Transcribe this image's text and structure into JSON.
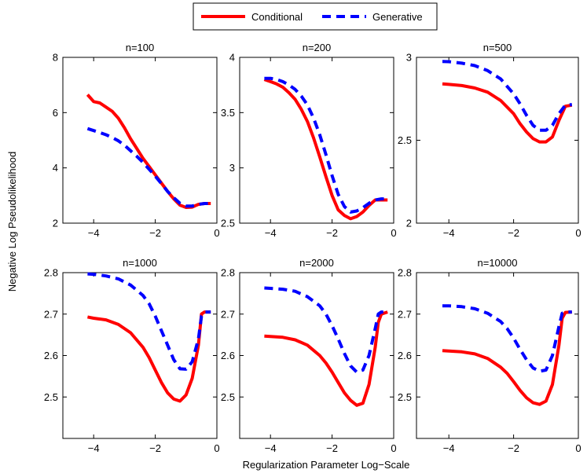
{
  "figure": {
    "xlabel": "Regularization Parameter Log−Scale",
    "ylabel": "Negative Log Pseudolikelihood"
  },
  "legend": {
    "entries": [
      {
        "name": "Conditional",
        "color": "#ff0000",
        "style": "solid"
      },
      {
        "name": "Generative",
        "color": "#0000ff",
        "style": "dashed"
      }
    ]
  },
  "chart_data": [
    {
      "type": "line",
      "title": "n=100",
      "xlim": [
        -5,
        0
      ],
      "ylim": [
        2,
        8
      ],
      "xticks": [
        -4,
        -2,
        0
      ],
      "xtick_labels": [
        "−4",
        "−2",
        "0"
      ],
      "yticks": [
        2,
        4,
        6,
        8
      ],
      "ytick_labels": [
        "2",
        "4",
        "6",
        "8"
      ],
      "series": [
        {
          "name": "Conditional",
          "color": "#ff0000",
          "style": "solid",
          "x": [
            -4.2,
            -4.0,
            -3.8,
            -3.6,
            -3.4,
            -3.2,
            -3.0,
            -2.8,
            -2.6,
            -2.4,
            -2.2,
            -2.0,
            -1.8,
            -1.6,
            -1.4,
            -1.2,
            -1.0,
            -0.8,
            -0.6,
            -0.4,
            -0.2
          ],
          "y": [
            6.65,
            6.4,
            6.35,
            6.2,
            6.05,
            5.8,
            5.45,
            5.05,
            4.7,
            4.35,
            4.05,
            3.75,
            3.45,
            3.15,
            2.88,
            2.65,
            2.57,
            2.58,
            2.68,
            2.71,
            2.71
          ]
        },
        {
          "name": "Generative",
          "color": "#0000ff",
          "style": "dashed",
          "x": [
            -4.2,
            -4.0,
            -3.8,
            -3.6,
            -3.4,
            -3.2,
            -3.0,
            -2.8,
            -2.6,
            -2.4,
            -2.2,
            -2.0,
            -1.8,
            -1.6,
            -1.4,
            -1.2,
            -1.0,
            -0.8,
            -0.6,
            -0.4,
            -0.2
          ],
          "y": [
            5.42,
            5.35,
            5.28,
            5.2,
            5.1,
            4.98,
            4.82,
            4.62,
            4.42,
            4.2,
            3.95,
            3.7,
            3.43,
            3.15,
            2.92,
            2.72,
            2.62,
            2.62,
            2.68,
            2.71,
            2.71
          ]
        }
      ]
    },
    {
      "type": "line",
      "title": "n=200",
      "xlim": [
        -5,
        0
      ],
      "ylim": [
        2.5,
        4
      ],
      "xticks": [
        -4,
        -2,
        0
      ],
      "xtick_labels": [
        "−4",
        "−2",
        "0"
      ],
      "yticks": [
        2.5,
        3,
        3.5,
        4
      ],
      "ytick_labels": [
        "2.5",
        "3",
        "3.5",
        "4"
      ],
      "series": [
        {
          "name": "Conditional",
          "color": "#ff0000",
          "style": "solid",
          "x": [
            -4.2,
            -4.0,
            -3.8,
            -3.6,
            -3.4,
            -3.2,
            -3.0,
            -2.8,
            -2.6,
            -2.4,
            -2.2,
            -2.0,
            -1.8,
            -1.6,
            -1.4,
            -1.2,
            -1.0,
            -0.8,
            -0.6,
            -0.4,
            -0.2
          ],
          "y": [
            3.8,
            3.78,
            3.76,
            3.73,
            3.68,
            3.62,
            3.53,
            3.42,
            3.27,
            3.1,
            2.92,
            2.75,
            2.62,
            2.57,
            2.54,
            2.56,
            2.6,
            2.66,
            2.71,
            2.71,
            2.71
          ]
        },
        {
          "name": "Generative",
          "color": "#0000ff",
          "style": "dashed",
          "x": [
            -4.2,
            -4.0,
            -3.8,
            -3.6,
            -3.4,
            -3.2,
            -3.0,
            -2.8,
            -2.6,
            -2.4,
            -2.2,
            -2.0,
            -1.8,
            -1.6,
            -1.4,
            -1.2,
            -1.0,
            -0.8,
            -0.6,
            -0.4,
            -0.2
          ],
          "y": [
            3.81,
            3.81,
            3.8,
            3.78,
            3.75,
            3.71,
            3.65,
            3.57,
            3.45,
            3.3,
            3.12,
            2.93,
            2.76,
            2.65,
            2.6,
            2.61,
            2.64,
            2.68,
            2.71,
            2.72,
            2.72
          ]
        }
      ]
    },
    {
      "type": "line",
      "title": "n=500",
      "xlim": [
        -5,
        0
      ],
      "ylim": [
        2,
        3
      ],
      "xticks": [
        -4,
        -2,
        0
      ],
      "xtick_labels": [
        "−4",
        "−2",
        "0"
      ],
      "yticks": [
        2,
        2.5,
        3
      ],
      "ytick_labels": [
        "2",
        "2.5",
        "3"
      ],
      "series": [
        {
          "name": "Conditional",
          "color": "#ff0000",
          "style": "solid",
          "x": [
            -4.2,
            -4.0,
            -3.6,
            -3.2,
            -2.8,
            -2.4,
            -2.0,
            -1.8,
            -1.6,
            -1.4,
            -1.2,
            -1.0,
            -0.8,
            -0.6,
            -0.4,
            -0.2
          ],
          "y": [
            2.84,
            2.837,
            2.83,
            2.815,
            2.79,
            2.74,
            2.66,
            2.6,
            2.55,
            2.51,
            2.49,
            2.49,
            2.52,
            2.62,
            2.705,
            2.712
          ]
        },
        {
          "name": "Generative",
          "color": "#0000ff",
          "style": "dashed",
          "x": [
            -4.2,
            -4.0,
            -3.6,
            -3.2,
            -2.8,
            -2.4,
            -2.0,
            -1.8,
            -1.6,
            -1.4,
            -1.2,
            -1.0,
            -0.8,
            -0.6,
            -0.4,
            -0.2
          ],
          "y": [
            2.975,
            2.974,
            2.965,
            2.95,
            2.92,
            2.87,
            2.78,
            2.72,
            2.65,
            2.59,
            2.56,
            2.56,
            2.59,
            2.66,
            2.712,
            2.715
          ]
        }
      ]
    },
    {
      "type": "line",
      "title": "n=1000",
      "xlim": [
        -5,
        0
      ],
      "ylim": [
        2.4,
        2.8
      ],
      "xticks": [
        -4,
        -2,
        0
      ],
      "xtick_labels": [
        "−4",
        "−2",
        "0"
      ],
      "yticks": [
        2.5,
        2.6,
        2.7,
        2.8
      ],
      "ytick_labels": [
        "2.5",
        "2.6",
        "2.7",
        "2.8"
      ],
      "series": [
        {
          "name": "Conditional",
          "color": "#ff0000",
          "style": "solid",
          "x": [
            -4.2,
            -4.0,
            -3.6,
            -3.2,
            -2.8,
            -2.4,
            -2.2,
            -2.0,
            -1.8,
            -1.6,
            -1.4,
            -1.2,
            -1.0,
            -0.8,
            -0.6,
            -0.5,
            -0.4,
            -0.2
          ],
          "y": [
            2.693,
            2.69,
            2.686,
            2.675,
            2.655,
            2.62,
            2.595,
            2.565,
            2.535,
            2.51,
            2.495,
            2.49,
            2.505,
            2.545,
            2.625,
            2.7,
            2.705,
            2.705
          ]
        },
        {
          "name": "Generative",
          "color": "#0000ff",
          "style": "dashed",
          "x": [
            -4.2,
            -4.0,
            -3.6,
            -3.2,
            -2.8,
            -2.4,
            -2.2,
            -2.0,
            -1.8,
            -1.6,
            -1.4,
            -1.2,
            -1.0,
            -0.8,
            -0.6,
            -0.5,
            -0.4,
            -0.2
          ],
          "y": [
            2.797,
            2.796,
            2.792,
            2.785,
            2.77,
            2.745,
            2.725,
            2.695,
            2.66,
            2.625,
            2.59,
            2.568,
            2.567,
            2.585,
            2.64,
            2.695,
            2.705,
            2.705
          ]
        }
      ]
    },
    {
      "type": "line",
      "title": "n=2000",
      "xlim": [
        -5,
        0
      ],
      "ylim": [
        2.4,
        2.8
      ],
      "xticks": [
        -4,
        -2,
        0
      ],
      "xtick_labels": [
        "−4",
        "−2",
        "0"
      ],
      "yticks": [
        2.5,
        2.6,
        2.7,
        2.8
      ],
      "ytick_labels": [
        "2.5",
        "2.6",
        "2.7",
        "2.8"
      ],
      "series": [
        {
          "name": "Conditional",
          "color": "#ff0000",
          "style": "solid",
          "x": [
            -4.2,
            -4.0,
            -3.6,
            -3.2,
            -2.8,
            -2.4,
            -2.2,
            -2.0,
            -1.8,
            -1.6,
            -1.4,
            -1.2,
            -1.0,
            -0.8,
            -0.6,
            -0.5,
            -0.4,
            -0.2
          ],
          "y": [
            2.647,
            2.646,
            2.644,
            2.638,
            2.625,
            2.6,
            2.582,
            2.56,
            2.535,
            2.51,
            2.492,
            2.48,
            2.485,
            2.53,
            2.62,
            2.68,
            2.7,
            2.705
          ]
        },
        {
          "name": "Generative",
          "color": "#0000ff",
          "style": "dashed",
          "x": [
            -4.2,
            -4.0,
            -3.6,
            -3.2,
            -2.8,
            -2.4,
            -2.2,
            -2.0,
            -1.8,
            -1.6,
            -1.4,
            -1.2,
            -1.0,
            -0.8,
            -0.6,
            -0.5,
            -0.4,
            -0.2
          ],
          "y": [
            2.763,
            2.762,
            2.76,
            2.755,
            2.742,
            2.72,
            2.7,
            2.672,
            2.64,
            2.605,
            2.575,
            2.56,
            2.565,
            2.6,
            2.665,
            2.7,
            2.705,
            2.705
          ]
        }
      ]
    },
    {
      "type": "line",
      "title": "n=10000",
      "xlim": [
        -5,
        0
      ],
      "ylim": [
        2.4,
        2.8
      ],
      "xticks": [
        -4,
        -2,
        0
      ],
      "xtick_labels": [
        "−4",
        "−2",
        "0"
      ],
      "yticks": [
        2.5,
        2.6,
        2.7,
        2.8
      ],
      "ytick_labels": [
        "2.5",
        "2.6",
        "2.7",
        "2.8"
      ],
      "series": [
        {
          "name": "Conditional",
          "color": "#ff0000",
          "style": "solid",
          "x": [
            -4.2,
            -4.0,
            -3.6,
            -3.2,
            -2.8,
            -2.4,
            -2.2,
            -2.0,
            -1.8,
            -1.6,
            -1.4,
            -1.2,
            -1.0,
            -0.8,
            -0.6,
            -0.5,
            -0.4,
            -0.2
          ],
          "y": [
            2.612,
            2.611,
            2.609,
            2.604,
            2.593,
            2.572,
            2.557,
            2.537,
            2.516,
            2.498,
            2.486,
            2.482,
            2.49,
            2.53,
            2.625,
            2.69,
            2.704,
            2.705
          ]
        },
        {
          "name": "Generative",
          "color": "#0000ff",
          "style": "dashed",
          "x": [
            -4.2,
            -4.0,
            -3.6,
            -3.2,
            -2.8,
            -2.4,
            -2.2,
            -2.0,
            -1.8,
            -1.6,
            -1.4,
            -1.2,
            -1.0,
            -0.8,
            -0.6,
            -0.5,
            -0.4,
            -0.2
          ],
          "y": [
            2.72,
            2.72,
            2.718,
            2.713,
            2.702,
            2.682,
            2.665,
            2.642,
            2.615,
            2.59,
            2.57,
            2.562,
            2.565,
            2.6,
            2.67,
            2.702,
            2.705,
            2.705
          ]
        }
      ]
    }
  ]
}
